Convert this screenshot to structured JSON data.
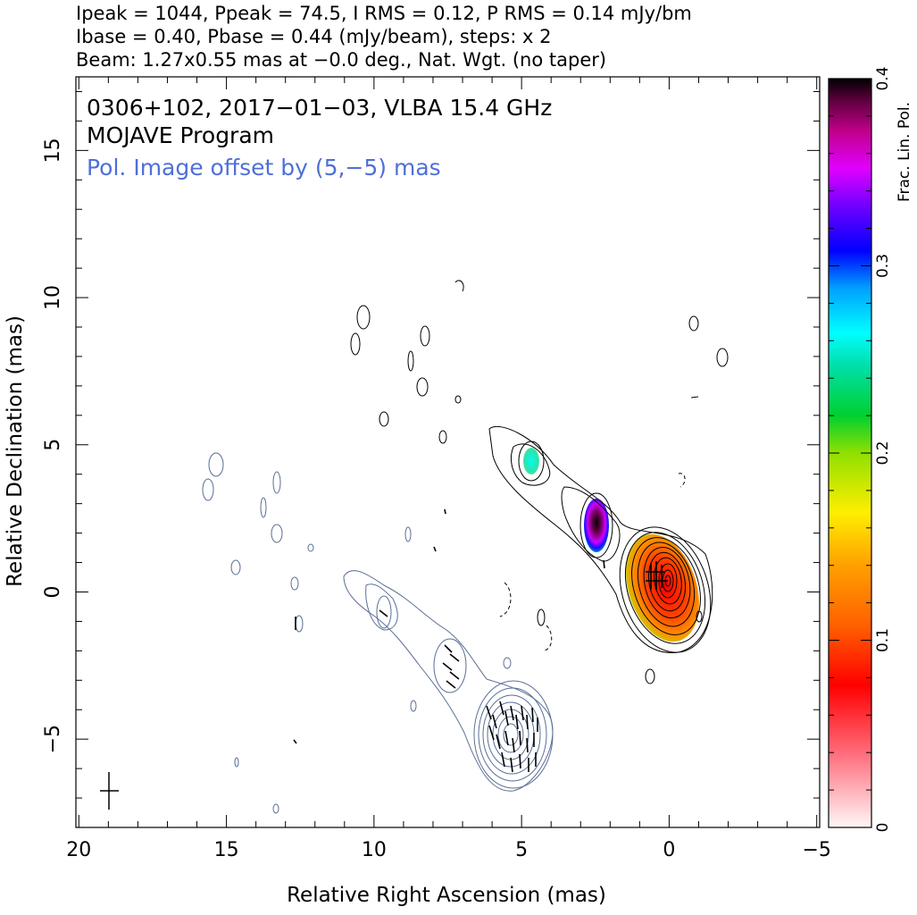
{
  "header": {
    "line1": "Ipeak = 1044, Ppeak = 74.5, I RMS = 0.12, P RMS = 0.14 mJy/bm",
    "line2": "Ibase = 0.40, Pbase = 0.44 (mJy/beam), steps: x 2",
    "line3": "Beam: 1.27x0.55 mas at −0.0 deg., Nat. Wgt. (no taper)"
  },
  "annotations": {
    "source_line": "0306+102, 2017−01−03, VLBA 15.4 GHz",
    "program_line": "MOJAVE Program",
    "offset_line": "Pol. Image offset by (5,−5) mas"
  },
  "colors": {
    "total_intensity_contours": "#000000",
    "polarized_contours": "#5a6e96",
    "offset_text": "#4f6fd8"
  },
  "chart_data": {
    "type": "heatmap",
    "xlabel": "Relative Right Ascension (mas)",
    "ylabel": "Relative Declination (mas)",
    "xlim": [
      20.1,
      -5.1
    ],
    "ylim": [
      -8.0,
      17.5
    ],
    "x_ticks": [
      20,
      15,
      10,
      5,
      0,
      -5
    ],
    "x_tick_labels": [
      "20",
      "15",
      "10",
      "5",
      "0",
      "−5"
    ],
    "y_ticks": [
      -5,
      0,
      5,
      10,
      15
    ],
    "y_tick_labels": [
      "−5",
      "0",
      "5",
      "10",
      "15"
    ],
    "colorbar": {
      "label": "Frac. Lin. Pol.",
      "range": [
        0,
        0.4
      ],
      "ticks": [
        0,
        0.1,
        0.2,
        0.3,
        0.4
      ],
      "tick_labels": [
        "0",
        "0.1",
        "0.2",
        "0.3",
        "0.4"
      ]
    },
    "intensity_peak_mJy_per_beam": 1044,
    "pol_peak_mJy_per_beam": 74.5,
    "contour_base_mJy_per_beam": 0.4,
    "contour_step_factor": 2,
    "core_position": [
      0,
      0
    ],
    "pol_offset": [
      5,
      -5
    ],
    "components": [
      {
        "x": 0.0,
        "y": 0.0,
        "frac_pol": 0.09
      },
      {
        "x": 2.4,
        "y": 2.1,
        "frac_pol": 0.36
      },
      {
        "x": 4.6,
        "y": 4.4,
        "frac_pol": 0.26
      }
    ],
    "beam": {
      "major_mas": 1.27,
      "minor_mas": 0.55,
      "pa_deg": -0.0
    }
  }
}
